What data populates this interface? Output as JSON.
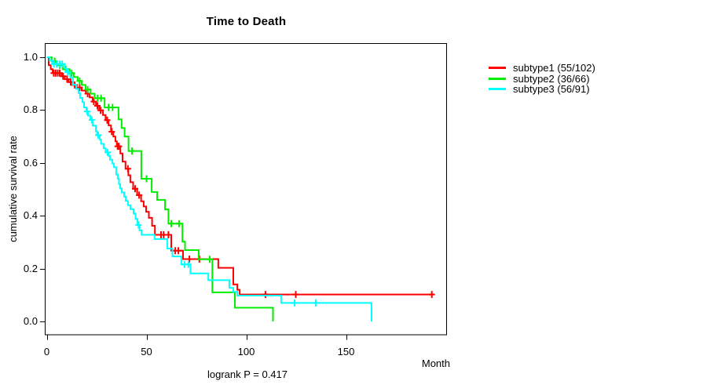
{
  "title": "Time to Death",
  "axes": {
    "x": {
      "label": "Month",
      "ticks": [
        {
          "label": "0",
          "value": 0
        },
        {
          "label": "50",
          "value": 50
        },
        {
          "label": "100",
          "value": 100
        },
        {
          "label": "150",
          "value": 150
        }
      ]
    },
    "y": {
      "label": "cumulative survival rate",
      "ticks": [
        {
          "label": "0.0",
          "value": 0.0
        },
        {
          "label": "0.2",
          "value": 0.2
        },
        {
          "label": "0.4",
          "value": 0.4
        },
        {
          "label": "0.6",
          "value": 0.6
        },
        {
          "label": "0.8",
          "value": 0.8
        },
        {
          "label": "1.0",
          "value": 1.0
        }
      ]
    }
  },
  "footer": {
    "logrank_label": "logrank P = 0.417"
  },
  "legend": {
    "items": [
      {
        "label": "subtype1 (55/102)",
        "color": "#ff0000"
      },
      {
        "label": "subtype2 (36/66)",
        "color": "#00ee00"
      },
      {
        "label": "subtype3 (56/91)",
        "color": "#00ffff"
      }
    ]
  },
  "chart_data": {
    "type": "line",
    "subtype": "kaplan-meier-step-curves",
    "title": "Time to Death",
    "xlabel": "Month",
    "ylabel": "cumulative survival rate",
    "xlim": [
      0,
      200
    ],
    "ylim": [
      0,
      1.05
    ],
    "grid": false,
    "legend_position": "right-outside",
    "annotation": "logrank P = 0.417",
    "series": [
      {
        "name": "subtype1",
        "legend": "subtype1 (55/102)",
        "events": 55,
        "n": 102,
        "color": "#ff0000",
        "end_time": 193,
        "steps": [
          [
            0,
            1.0
          ],
          [
            1,
            0.97
          ],
          [
            2,
            0.955
          ],
          [
            3,
            0.94
          ],
          [
            7.5,
            0.928
          ],
          [
            9,
            0.917
          ],
          [
            11,
            0.906
          ],
          [
            13,
            0.895
          ],
          [
            15,
            0.885
          ],
          [
            17.5,
            0.874
          ],
          [
            19.6,
            0.862
          ],
          [
            21.5,
            0.848
          ],
          [
            23,
            0.832
          ],
          [
            24.7,
            0.816
          ],
          [
            26.3,
            0.799
          ],
          [
            28.2,
            0.781
          ],
          [
            29.5,
            0.762
          ],
          [
            31,
            0.742
          ],
          [
            32.2,
            0.718
          ],
          [
            33.4,
            0.7
          ],
          [
            34.4,
            0.682
          ],
          [
            35.1,
            0.663
          ],
          [
            36.9,
            0.636
          ],
          [
            38,
            0.605
          ],
          [
            39.5,
            0.578
          ],
          [
            40.9,
            0.553
          ],
          [
            41.9,
            0.527
          ],
          [
            43.3,
            0.502
          ],
          [
            45.3,
            0.478
          ],
          [
            47.3,
            0.455
          ],
          [
            48.6,
            0.435
          ],
          [
            49.8,
            0.415
          ],
          [
            51.2,
            0.392
          ],
          [
            52.8,
            0.362
          ],
          [
            54.2,
            0.328
          ],
          [
            62.4,
            0.268
          ],
          [
            68.3,
            0.236
          ],
          [
            86,
            0.203
          ],
          [
            93.5,
            0.14
          ],
          [
            95.5,
            0.12
          ],
          [
            96.7,
            0.102
          ]
        ],
        "censor_times": [
          3.5,
          4.5,
          5.5,
          6.5,
          8.2,
          10.2,
          12,
          14,
          16.5,
          20.5,
          23.6,
          25.4,
          27,
          30.3,
          32.6,
          35.5,
          36.2,
          40.7,
          44.3,
          46.3,
          57.3,
          58.6,
          61,
          64.4,
          66,
          71.5,
          76.5,
          109.6,
          124.8,
          193
        ]
      },
      {
        "name": "subtype2",
        "legend": "subtype2 (36/66)",
        "events": 36,
        "n": 66,
        "color": "#00ee00",
        "end_time": 113.4,
        "steps": [
          [
            0,
            1.0
          ],
          [
            2.5,
            0.985
          ],
          [
            5,
            0.97
          ],
          [
            8,
            0.955
          ],
          [
            11.5,
            0.94
          ],
          [
            13.5,
            0.925
          ],
          [
            15.5,
            0.91
          ],
          [
            17.5,
            0.895
          ],
          [
            19.5,
            0.878
          ],
          [
            22,
            0.862
          ],
          [
            24,
            0.845
          ],
          [
            29,
            0.81
          ],
          [
            36,
            0.765
          ],
          [
            37.5,
            0.732
          ],
          [
            39,
            0.7
          ],
          [
            41,
            0.645
          ],
          [
            47.4,
            0.54
          ],
          [
            52.6,
            0.49
          ],
          [
            55.3,
            0.46
          ],
          [
            59.3,
            0.424
          ],
          [
            61,
            0.37
          ],
          [
            68,
            0.302
          ],
          [
            69.3,
            0.27
          ],
          [
            76.2,
            0.235
          ],
          [
            83,
            0.11
          ],
          [
            94.3,
            0.052
          ],
          [
            113.4,
            0
          ]
        ],
        "censor_times": [
          4,
          6.5,
          9.5,
          12.5,
          16.5,
          20.5,
          25.5,
          27.2,
          31,
          33,
          42.7,
          50,
          62.4,
          66.3,
          81.7
        ]
      },
      {
        "name": "subtype3",
        "legend": "subtype3 (56/91)",
        "events": 56,
        "n": 91,
        "color": "#00ffff",
        "end_time": 162.8,
        "steps": [
          [
            0,
            1.0
          ],
          [
            1.5,
            0.988
          ],
          [
            2.8,
            0.974
          ],
          [
            9,
            0.958
          ],
          [
            9.8,
            0.944
          ],
          [
            11.8,
            0.922
          ],
          [
            13.2,
            0.896
          ],
          [
            14.8,
            0.88
          ],
          [
            15.9,
            0.864
          ],
          [
            16.7,
            0.846
          ],
          [
            17.9,
            0.83
          ],
          [
            18.7,
            0.81
          ],
          [
            19.9,
            0.795
          ],
          [
            20.7,
            0.779
          ],
          [
            21.9,
            0.763
          ],
          [
            23,
            0.741
          ],
          [
            24.6,
            0.72
          ],
          [
            25.2,
            0.705
          ],
          [
            26.6,
            0.688
          ],
          [
            27.2,
            0.672
          ],
          [
            28.5,
            0.655
          ],
          [
            29.5,
            0.64
          ],
          [
            30.9,
            0.627
          ],
          [
            31.7,
            0.612
          ],
          [
            32.9,
            0.598
          ],
          [
            33.7,
            0.584
          ],
          [
            34.8,
            0.556
          ],
          [
            35.6,
            0.54
          ],
          [
            36.2,
            0.52
          ],
          [
            36.8,
            0.504
          ],
          [
            37.6,
            0.488
          ],
          [
            38.8,
            0.472
          ],
          [
            39.6,
            0.456
          ],
          [
            40.7,
            0.44
          ],
          [
            41.9,
            0.425
          ],
          [
            43.5,
            0.408
          ],
          [
            44.5,
            0.388
          ],
          [
            45.5,
            0.365
          ],
          [
            46.5,
            0.345
          ],
          [
            47.5,
            0.328
          ],
          [
            54,
            0.312
          ],
          [
            60.4,
            0.276
          ],
          [
            63,
            0.246
          ],
          [
            67.5,
            0.216
          ],
          [
            72,
            0.182
          ],
          [
            81,
            0.156
          ],
          [
            91.5,
            0.127
          ],
          [
            93.5,
            0.112
          ],
          [
            95.5,
            0.098
          ],
          [
            117.5,
            0.07
          ],
          [
            162.8,
            0
          ]
        ],
        "censor_times": [
          3.6,
          5,
          6.4,
          7.8,
          10.5,
          20.2,
          22.6,
          25.8,
          30.5,
          46,
          69,
          71,
          124.2,
          134.8
        ]
      }
    ]
  }
}
